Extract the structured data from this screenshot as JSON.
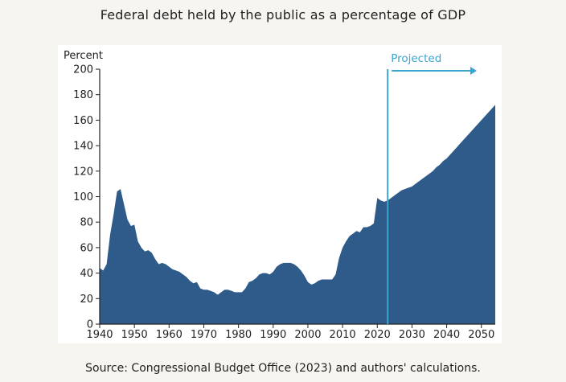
{
  "chart_data": {
    "type": "area",
    "title": "Federal debt held by the public as a percentage of GDP",
    "ylabel": "Percent",
    "xlabel": "",
    "xlim": [
      1940,
      2054
    ],
    "ylim": [
      0,
      200
    ],
    "xticks": [
      1940,
      1950,
      1960,
      1970,
      1980,
      1990,
      2000,
      2010,
      2020,
      2030,
      2040,
      2050
    ],
    "yticks": [
      0,
      20,
      40,
      60,
      80,
      100,
      120,
      140,
      160,
      180,
      200
    ],
    "grid": false,
    "fill_color": "#2e5b8a",
    "annotation": {
      "label": "Projected",
      "x": 2023,
      "color": "#3aa6cf"
    },
    "source_note": "Source: Congressional Budget Office (2023) and authors' calculations.",
    "series": [
      {
        "x": [
          1940,
          1941,
          1942,
          1943,
          1944,
          1945,
          1946,
          1947,
          1948,
          1949,
          1950,
          1951,
          1952,
          1953,
          1954,
          1955,
          1956,
          1957,
          1958,
          1959,
          1960,
          1961,
          1962,
          1963,
          1964,
          1965,
          1966,
          1967,
          1968,
          1969,
          1970,
          1971,
          1972,
          1973,
          1974,
          1975,
          1976,
          1977,
          1978,
          1979,
          1980,
          1981,
          1982,
          1983,
          1984,
          1985,
          1986,
          1987,
          1988,
          1989,
          1990,
          1991,
          1992,
          1993,
          1994,
          1995,
          1996,
          1997,
          1998,
          1999,
          2000,
          2001,
          2002,
          2003,
          2004,
          2005,
          2006,
          2007,
          2008,
          2009,
          2010,
          2011,
          2012,
          2013,
          2014,
          2015,
          2016,
          2017,
          2018,
          2019,
          2020,
          2021,
          2022,
          2023,
          2024,
          2025,
          2026,
          2027,
          2028,
          2029,
          2030,
          2031,
          2032,
          2033,
          2034,
          2035,
          2036,
          2037,
          2038,
          2039,
          2040,
          2041,
          2042,
          2043,
          2044,
          2045,
          2046,
          2047,
          2048,
          2049,
          2050,
          2051,
          2052,
          2053,
          2054
        ],
        "y": [
          44,
          42,
          47,
          70,
          86,
          104,
          106,
          94,
          82,
          77,
          78,
          65,
          60,
          57,
          58,
          56,
          51,
          47,
          48,
          47,
          45,
          43,
          42,
          41,
          39,
          37,
          34,
          32,
          33,
          28,
          27,
          27,
          26,
          25,
          23,
          25,
          27,
          27,
          26,
          25,
          25,
          25,
          28,
          33,
          34,
          36,
          39,
          40,
          40,
          39,
          41,
          45,
          47,
          48,
          48,
          48,
          47,
          45,
          42,
          38,
          33,
          31,
          32,
          34,
          35,
          35,
          35,
          35,
          39,
          52,
          60,
          65,
          69,
          71,
          73,
          72,
          76,
          76,
          77,
          79,
          99,
          97,
          96,
          97,
          99,
          101,
          103,
          105,
          106,
          107,
          108,
          110,
          112,
          114,
          116,
          118,
          120,
          123,
          125,
          128,
          130,
          133,
          136,
          139,
          142,
          145,
          148,
          151,
          154,
          157,
          160,
          163,
          166,
          169,
          172
        ]
      }
    ]
  }
}
